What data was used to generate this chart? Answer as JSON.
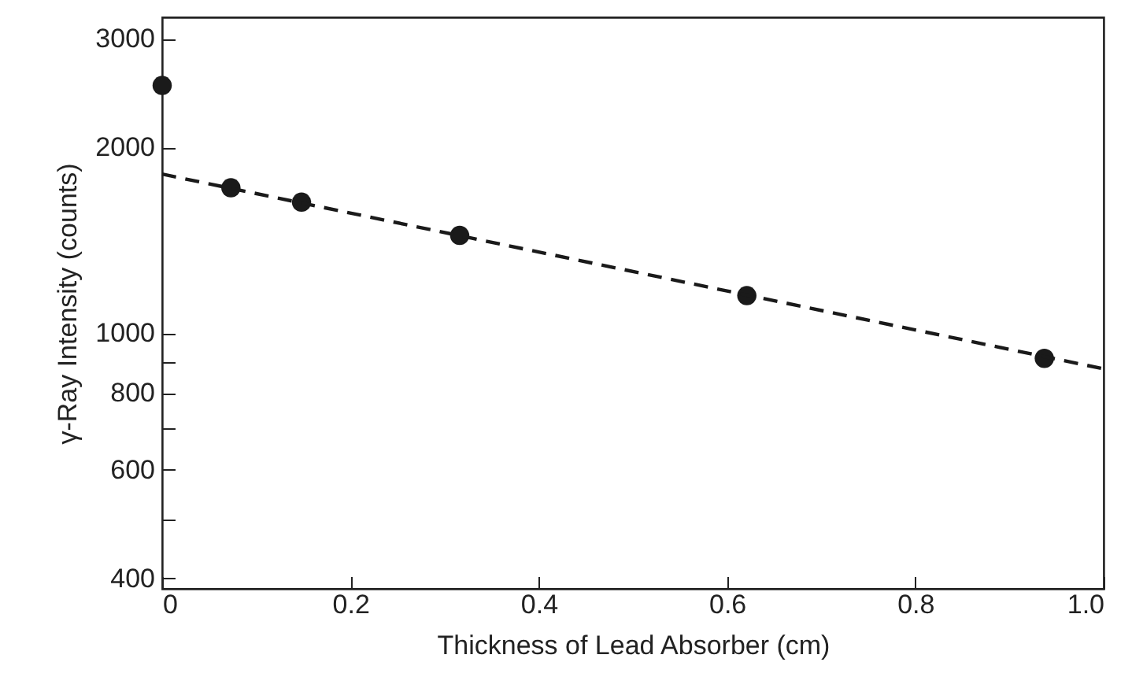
{
  "chart_data": {
    "type": "scatter",
    "xlabel": "Thickness of Lead Absorber (cm)",
    "ylabel": "γ-Ray Intensity (counts)",
    "log": "y",
    "grid": false,
    "xlim": [
      0,
      1
    ],
    "xticks": [
      0,
      0.2,
      0.4,
      0.6,
      0.8,
      {
        "value": 1,
        "label": "1.0"
      }
    ],
    "ylim": [
      385,
      3250
    ],
    "yticks": [
      400,
      {
        "value": 500,
        "label": null
      },
      600,
      {
        "value": 700,
        "label": null
      },
      800,
      {
        "value": 900,
        "label": null
      },
      1000,
      2000,
      3000
    ],
    "series": [
      {
        "type": "scatter",
        "color": "#1a1a1a",
        "marker": "circle",
        "x": [
          0,
          0.073,
          0.148,
          0.316,
          0.621,
          0.937
        ],
        "values": [
          2520,
          1720,
          1630,
          1440,
          1150,
          910
        ]
      },
      {
        "type": "line",
        "color": "#1a1a1a",
        "line_style": "dashed",
        "marker": "none",
        "x": [
          0,
          1
        ],
        "values": [
          1810,
          875
        ]
      }
    ]
  }
}
